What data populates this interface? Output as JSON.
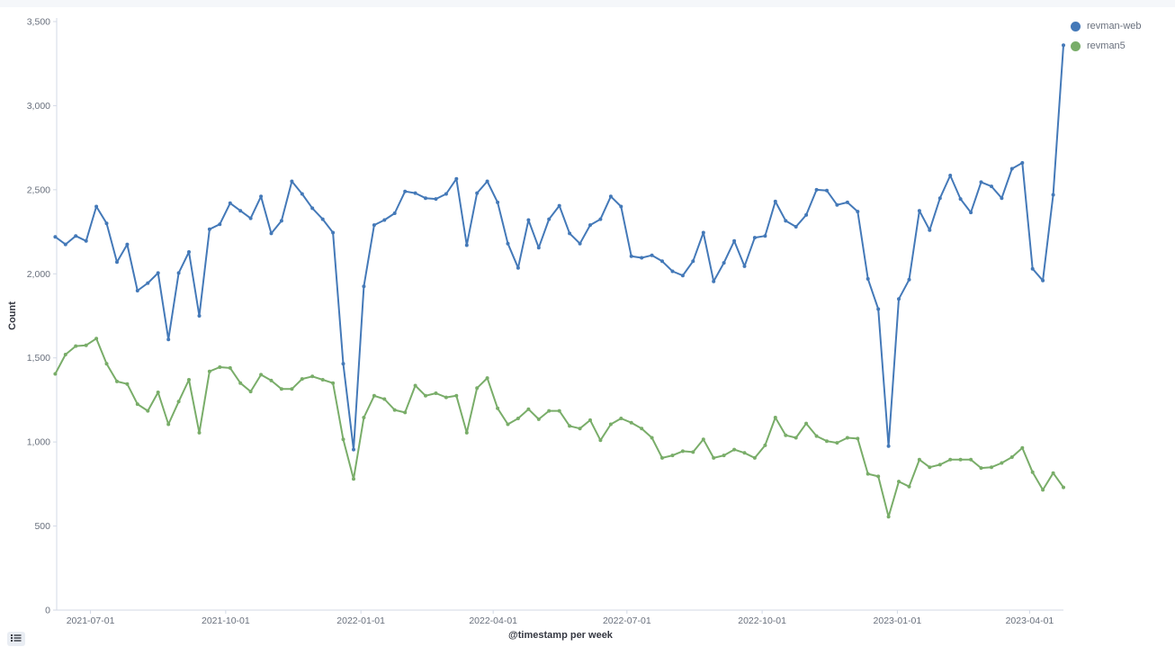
{
  "chart_data": {
    "type": "line",
    "xlabel": "@timestamp per week",
    "ylabel": "Count",
    "ylim": [
      0,
      3500
    ],
    "yticks": [
      0,
      500,
      1000,
      1500,
      2000,
      2500,
      3000,
      3500
    ],
    "ytick_labels": [
      "0",
      "500",
      "1,000",
      "1,500",
      "2,000",
      "2,500",
      "3,000",
      "3,500"
    ],
    "x_start": "2021-06-08",
    "x_end": "2023-04-24",
    "xtick_dates": [
      "2021-07-01",
      "2021-10-01",
      "2022-01-01",
      "2022-04-01",
      "2022-07-01",
      "2022-10-01",
      "2023-01-01",
      "2023-04-01"
    ],
    "xtick_labels": [
      "2021-07-01",
      "2021-10-01",
      "2022-01-01",
      "2022-04-01",
      "2022-07-01",
      "2022-10-01",
      "2023-01-01",
      "2023-04-01"
    ],
    "x_interval": "week",
    "x_first": "2021-06-07",
    "grid": false,
    "legend_position": "top-right",
    "series": [
      {
        "name": "revman-web",
        "color": "#4479b8",
        "values": [
          2220,
          2175,
          2225,
          2195,
          2400,
          2300,
          2070,
          2175,
          1900,
          1945,
          2005,
          1610,
          2005,
          2130,
          1750,
          2265,
          2295,
          2420,
          2375,
          2330,
          2460,
          2240,
          2315,
          2550,
          2475,
          2390,
          2325,
          2245,
          1465,
          955,
          1925,
          2290,
          2320,
          2360,
          2490,
          2480,
          2450,
          2445,
          2475,
          2565,
          2170,
          2480,
          2550,
          2425,
          2180,
          2035,
          2320,
          2155,
          2325,
          2405,
          2240,
          2180,
          2290,
          2325,
          2460,
          2400,
          2105,
          2095,
          2110,
          2075,
          2015,
          1990,
          2075,
          2245,
          1955,
          2065,
          2195,
          2045,
          2215,
          2225,
          2430,
          2315,
          2280,
          2350,
          2500,
          2495,
          2410,
          2425,
          2370,
          1970,
          1790,
          975,
          1850,
          1965,
          2375,
          2260,
          2450,
          2585,
          2445,
          2365,
          2545,
          2520,
          2450,
          2625,
          2660,
          2030,
          1960,
          2470,
          3360
        ]
      },
      {
        "name": "revman5",
        "color": "#79ad69",
        "values": [
          1405,
          1520,
          1570,
          1575,
          1615,
          1465,
          1360,
          1345,
          1225,
          1185,
          1295,
          1105,
          1240,
          1370,
          1055,
          1420,
          1445,
          1440,
          1350,
          1300,
          1400,
          1365,
          1315,
          1315,
          1375,
          1390,
          1370,
          1350,
          1015,
          780,
          1145,
          1275,
          1255,
          1190,
          1175,
          1335,
          1275,
          1290,
          1265,
          1275,
          1055,
          1320,
          1380,
          1200,
          1105,
          1140,
          1195,
          1135,
          1185,
          1185,
          1095,
          1080,
          1130,
          1010,
          1105,
          1140,
          1115,
          1080,
          1025,
          905,
          920,
          945,
          940,
          1015,
          905,
          920,
          955,
          935,
          905,
          980,
          1145,
          1040,
          1025,
          1110,
          1035,
          1005,
          995,
          1025,
          1020,
          810,
          795,
          555,
          765,
          735,
          895,
          850,
          865,
          895,
          895,
          895,
          845,
          850,
          875,
          910,
          965,
          820,
          715,
          815,
          730
        ]
      }
    ]
  }
}
